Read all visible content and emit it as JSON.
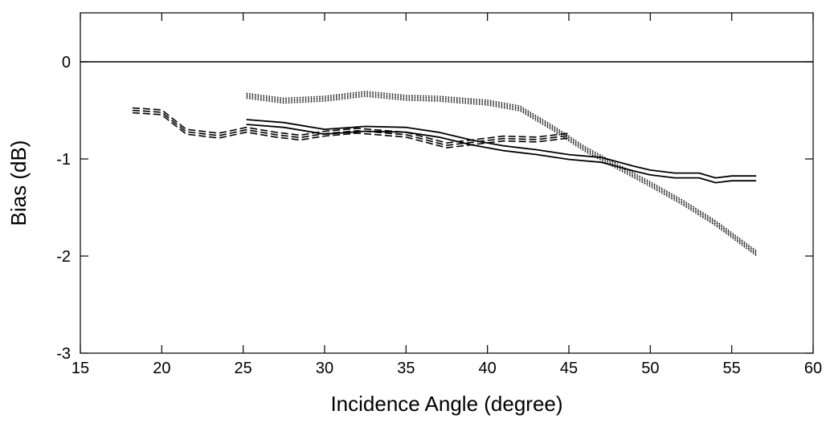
{
  "chart_data": {
    "type": "line",
    "title": "",
    "xlabel": "Incidence Angle (degree)",
    "ylabel": "Bias  (dB)",
    "xlim": [
      15,
      60
    ],
    "ylim": [
      -3,
      0.5
    ],
    "xticks": [
      15,
      20,
      25,
      30,
      35,
      40,
      45,
      50,
      55,
      60
    ],
    "yticks": [
      0,
      -1,
      -2,
      -3
    ],
    "xtick_labels": [
      "15",
      "20",
      "25",
      "30",
      "35",
      "40",
      "45",
      "50",
      "55",
      "60"
    ],
    "ytick_labels": [
      "0",
      "-1",
      "-2",
      "-3"
    ],
    "reference_line_y": 0,
    "grid": false,
    "legend": "none",
    "series": [
      {
        "style": "solid",
        "x": [
          25.2,
          27.5,
          30,
          32.5,
          35,
          37,
          39,
          41,
          43,
          45,
          47,
          49,
          50,
          51.5,
          53,
          54,
          55,
          56.5
        ],
        "y": [
          -0.62,
          -0.65,
          -0.72,
          -0.69,
          -0.7,
          -0.75,
          -0.83,
          -0.89,
          -0.93,
          -0.98,
          -1.01,
          -1.1,
          -1.14,
          -1.17,
          -1.17,
          -1.22,
          -1.2,
          -1.2
        ]
      },
      {
        "style": "dashed",
        "x": [
          18.2,
          20,
          21.5,
          23.5,
          25.2,
          27,
          28.5,
          30,
          32,
          35,
          37.5,
          39,
          41,
          43,
          45
        ],
        "y": [
          -0.5,
          -0.52,
          -0.72,
          -0.76,
          -0.7,
          -0.75,
          -0.78,
          -0.74,
          -0.71,
          -0.75,
          -0.86,
          -0.83,
          -0.79,
          -0.8,
          -0.76
        ]
      },
      {
        "style": "dotted",
        "x": [
          25.2,
          27.5,
          30,
          32.5,
          35,
          37,
          40,
          42,
          44,
          46,
          48,
          50,
          52,
          54,
          56.5
        ],
        "y": [
          -0.35,
          -0.4,
          -0.38,
          -0.33,
          -0.37,
          -0.38,
          -0.42,
          -0.48,
          -0.68,
          -0.9,
          -1.08,
          -1.26,
          -1.45,
          -1.66,
          -1.97
        ]
      }
    ]
  }
}
